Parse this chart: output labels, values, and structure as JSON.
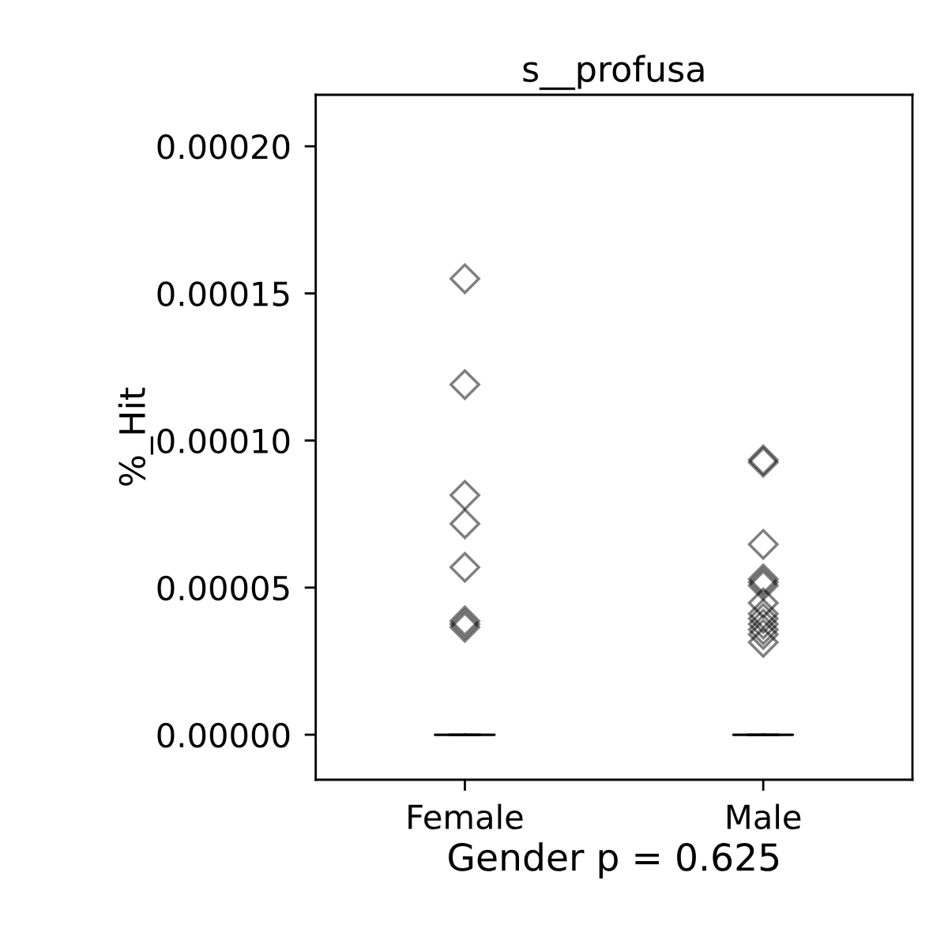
{
  "chart_data": {
    "type": "box",
    "title": "s__profusa",
    "xlabel": "Gender p = 0.625",
    "ylabel": "%_Hit",
    "categories": [
      "Female",
      "Male"
    ],
    "color": "#000000",
    "marker": "diamond",
    "boxes": [
      {
        "low": 0,
        "q1": 0,
        "median": 0,
        "q3": 0,
        "high": 0,
        "outliers": [
          0.000155,
          0.000119,
          8.14e-05,
          7.17e-05,
          5.69e-05,
          3.87e-05,
          3.76e-05,
          3.65e-05
        ]
      },
      {
        "low": 0,
        "q1": 0,
        "median": 0,
        "q3": 0,
        "high": 0,
        "outliers": [
          9.34e-05,
          9.26e-05,
          6.47e-05,
          5.29e-05,
          5.18e-05,
          5.07e-05,
          4.48e-05,
          4.11e-05,
          3.95e-05,
          3.76e-05,
          3.57e-05,
          3.41e-05,
          3.14e-05
        ]
      }
    ],
    "ylim": [
      -1.53e-05,
      0.0002175
    ],
    "yticks": [
      {
        "value": 0,
        "label": "0.00000"
      },
      {
        "value": 5e-05,
        "label": "0.00005"
      },
      {
        "value": 0.0001,
        "label": "0.00010"
      },
      {
        "value": 0.00015,
        "label": "0.00015"
      },
      {
        "value": 0.0002,
        "label": "0.00020"
      }
    ],
    "grid": false,
    "legend": false
  }
}
